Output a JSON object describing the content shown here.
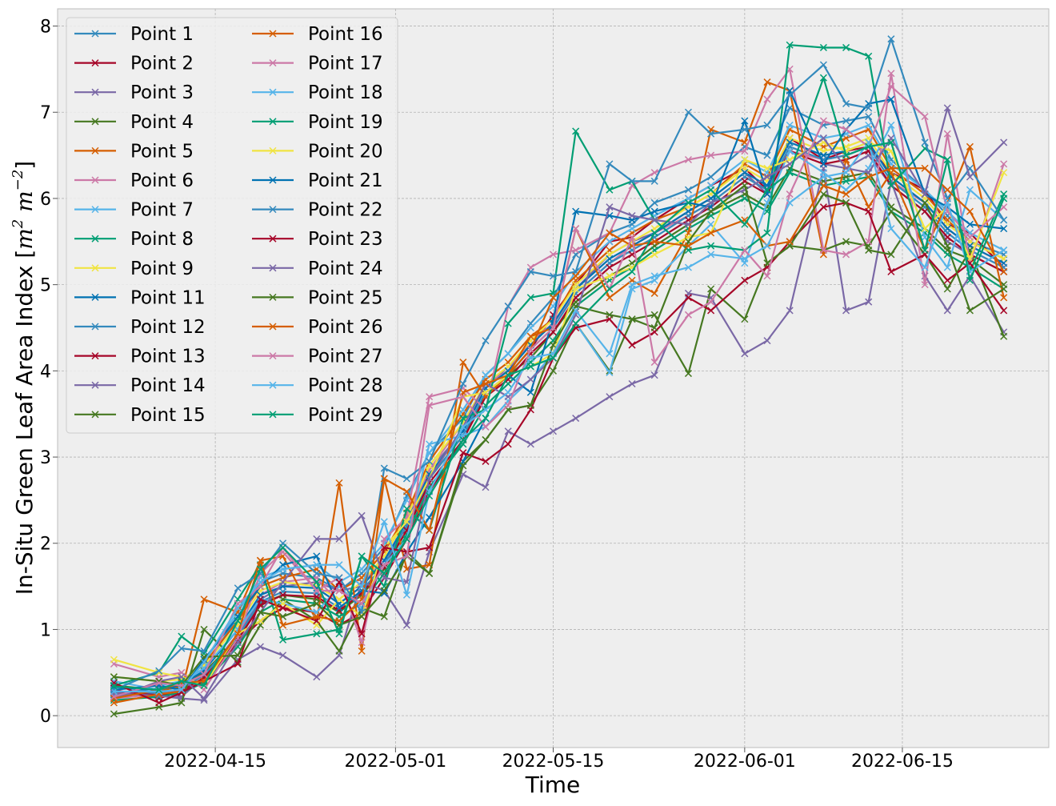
{
  "chart_data": {
    "type": "line",
    "xlabel": "Time",
    "ylabel_prefix": "In-Situ Green Leaf Area Index [",
    "ylabel_unit_base1": "m",
    "ylabel_unit_sup1": "2",
    "ylabel_unit_base2": "m",
    "ylabel_unit_sup2": "−2",
    "ylabel_suffix": "]",
    "xlim": [
      "2022-04-01",
      "2022-06-28"
    ],
    "ylim": [
      -0.37,
      8.2
    ],
    "x_ticks": [
      "2022-04-15",
      "2022-05-01",
      "2022-05-15",
      "2022-06-01",
      "2022-06-15"
    ],
    "y_ticks": [
      0,
      1,
      2,
      3,
      4,
      5,
      6,
      7,
      8
    ],
    "grid": true,
    "legend_position": "upper-left",
    "legend_columns": 2,
    "marker": "x",
    "palette": [
      "#348ABD",
      "#A60628",
      "#7A68A6",
      "#467821",
      "#D55E00",
      "#CC79A7",
      "#56B4E9",
      "#009E73",
      "#F0E442",
      "#0072B2"
    ],
    "dates": [
      "2022-04-06",
      "2022-04-10",
      "2022-04-12",
      "2022-04-14",
      "2022-04-17",
      "2022-04-19",
      "2022-04-21",
      "2022-04-24",
      "2022-04-26",
      "2022-04-28",
      "2022-04-30",
      "2022-05-02",
      "2022-05-04",
      "2022-05-07",
      "2022-05-09",
      "2022-05-11",
      "2022-05-13",
      "2022-05-15",
      "2022-05-17",
      "2022-05-20",
      "2022-05-22",
      "2022-05-24",
      "2022-05-27",
      "2022-05-29",
      "2022-06-01",
      "2022-06-03",
      "2022-06-05",
      "2022-06-08",
      "2022-06-10",
      "2022-06-12",
      "2022-06-14",
      "2022-06-17",
      "2022-06-19",
      "2022-06-21",
      "2022-06-24"
    ],
    "series": [
      {
        "name": "Point 1",
        "values": [
          0.25,
          0.32,
          0.38,
          0.55,
          1.15,
          1.55,
          1.65,
          1.6,
          1.45,
          1.65,
          1.95,
          2.55,
          3.05,
          3.45,
          3.95,
          4.2,
          4.55,
          4.85,
          5.35,
          5.6,
          5.7,
          5.95,
          6.1,
          6.25,
          6.6,
          6.5,
          7.05,
          6.85,
          6.9,
          6.95,
          6.45,
          6.1,
          5.8,
          5.5,
          5.35
        ]
      },
      {
        "name": "Point 2",
        "values": [
          0.3,
          0.2,
          0.28,
          0.4,
          0.85,
          1.1,
          1.25,
          1.2,
          1.05,
          1.2,
          1.6,
          2.05,
          2.6,
          3.2,
          3.75,
          3.95,
          4.25,
          4.65,
          5.0,
          5.5,
          5.55,
          5.75,
          6.0,
          6.15,
          6.35,
          6.1,
          6.7,
          6.45,
          6.55,
          6.6,
          6.3,
          6.1,
          5.7,
          5.6,
          5.2
        ]
      },
      {
        "name": "Point 3",
        "values": [
          0.28,
          0.26,
          0.22,
          0.45,
          0.95,
          1.35,
          1.5,
          1.55,
          1.45,
          1.5,
          1.8,
          2.2,
          2.85,
          3.3,
          3.8,
          4.05,
          4.3,
          4.55,
          4.95,
          5.35,
          5.5,
          5.6,
          5.85,
          6.0,
          6.3,
          6.05,
          6.55,
          6.4,
          6.35,
          6.5,
          6.15,
          5.85,
          5.5,
          5.35,
          5.15
        ]
      },
      {
        "name": "Point 4",
        "values": [
          0.35,
          0.3,
          0.33,
          0.5,
          0.9,
          1.3,
          1.4,
          1.35,
          1.2,
          1.4,
          1.7,
          2.15,
          2.75,
          3.25,
          3.7,
          3.95,
          4.15,
          4.45,
          4.8,
          5.1,
          5.25,
          5.45,
          5.7,
          5.85,
          6.05,
          5.9,
          6.35,
          6.2,
          6.25,
          6.3,
          5.9,
          5.65,
          5.4,
          5.3,
          5.0
        ]
      },
      {
        "name": "Point 5",
        "values": [
          0.22,
          0.28,
          0.35,
          0.6,
          1.1,
          1.5,
          1.6,
          1.7,
          1.45,
          1.6,
          1.9,
          2.35,
          2.95,
          3.5,
          3.9,
          4.1,
          4.4,
          4.6,
          5.05,
          5.4,
          5.6,
          5.75,
          5.9,
          6.05,
          6.4,
          6.25,
          6.8,
          6.6,
          6.7,
          6.8,
          6.35,
          6.05,
          5.75,
          5.5,
          5.3
        ]
      },
      {
        "name": "Point 6",
        "values": [
          0.2,
          0.25,
          0.3,
          0.42,
          0.95,
          1.4,
          1.55,
          1.6,
          1.3,
          1.5,
          1.85,
          2.3,
          2.85,
          3.4,
          3.85,
          4.0,
          4.35,
          4.55,
          4.9,
          5.25,
          5.45,
          5.6,
          5.8,
          5.95,
          6.25,
          6.1,
          6.55,
          6.45,
          6.5,
          6.6,
          6.2,
          5.95,
          5.65,
          5.45,
          5.25
        ]
      },
      {
        "name": "Point 7",
        "values": [
          0.3,
          0.35,
          0.4,
          0.62,
          1.2,
          1.6,
          1.7,
          1.75,
          1.55,
          1.7,
          2.0,
          2.5,
          3.05,
          3.55,
          3.95,
          4.2,
          4.5,
          4.75,
          5.15,
          5.5,
          5.65,
          5.8,
          6.0,
          6.15,
          6.45,
          6.3,
          6.85,
          6.7,
          6.75,
          6.85,
          6.4,
          6.1,
          5.85,
          5.6,
          5.4
        ]
      },
      {
        "name": "Point 8",
        "values": [
          0.18,
          0.22,
          0.27,
          0.38,
          0.8,
          1.2,
          1.35,
          1.3,
          1.15,
          1.3,
          1.65,
          2.1,
          2.65,
          3.15,
          3.6,
          3.85,
          4.1,
          4.35,
          4.75,
          5.05,
          5.2,
          5.4,
          5.65,
          5.8,
          6.0,
          5.85,
          6.3,
          6.15,
          6.2,
          6.25,
          5.85,
          5.6,
          5.35,
          5.2,
          4.95
        ]
      },
      {
        "name": "Point 9",
        "values": [
          0.45,
          0.4,
          0.42,
          0.58,
          1.05,
          1.45,
          1.55,
          1.5,
          1.35,
          1.55,
          1.85,
          2.3,
          2.9,
          3.4,
          3.85,
          4.05,
          4.35,
          4.6,
          5.0,
          5.35,
          5.5,
          5.65,
          5.9,
          6.05,
          6.35,
          6.2,
          6.7,
          6.55,
          6.6,
          6.7,
          6.3,
          6.0,
          5.7,
          5.5,
          5.3
        ]
      },
      {
        "name": "Point 11",
        "values": [
          0.32,
          0.3,
          0.36,
          0.52,
          1.0,
          1.4,
          1.5,
          1.48,
          1.3,
          1.5,
          1.8,
          2.25,
          2.8,
          3.3,
          3.8,
          4.0,
          4.3,
          4.55,
          4.95,
          5.3,
          5.45,
          5.6,
          5.85,
          6.0,
          6.3,
          6.15,
          6.65,
          6.5,
          6.55,
          6.65,
          6.25,
          5.95,
          5.65,
          5.45,
          5.25
        ]
      },
      {
        "name": "Point 12",
        "values": [
          0.24,
          0.27,
          0.31,
          0.47,
          0.92,
          1.32,
          1.44,
          1.42,
          1.25,
          1.45,
          1.75,
          2.2,
          2.75,
          3.25,
          3.75,
          3.95,
          4.25,
          4.5,
          4.9,
          5.25,
          5.4,
          5.55,
          5.8,
          5.95,
          6.25,
          6.1,
          6.6,
          6.45,
          6.5,
          6.6,
          6.2,
          5.9,
          5.6,
          5.4,
          5.2
        ]
      },
      {
        "name": "Point 13",
        "values": [
          0.27,
          0.24,
          0.29,
          0.44,
          0.88,
          1.28,
          1.4,
          1.38,
          1.22,
          1.42,
          1.72,
          2.15,
          2.7,
          3.2,
          3.7,
          3.9,
          4.2,
          4.45,
          4.85,
          5.2,
          5.35,
          5.5,
          5.75,
          5.9,
          6.2,
          6.05,
          6.55,
          6.4,
          6.45,
          6.55,
          6.15,
          5.85,
          5.55,
          5.35,
          5.15
        ]
      },
      {
        "name": "Point 14",
        "values": [
          0.26,
          0.23,
          0.2,
          0.18,
          0.65,
          0.8,
          0.7,
          0.45,
          0.7,
          1.55,
          1.45,
          1.05,
          1.9,
          2.8,
          2.65,
          3.3,
          3.15,
          3.3,
          3.45,
          3.7,
          3.85,
          3.95,
          4.9,
          4.85,
          4.2,
          4.35,
          4.7,
          6.35,
          4.7,
          4.8,
          6.2,
          5.1,
          4.7,
          5.1,
          4.45
        ]
      },
      {
        "name": "Point 15",
        "values": [
          0.02,
          0.1,
          0.15,
          1.0,
          0.62,
          1.05,
          1.35,
          1.1,
          0.75,
          1.25,
          1.15,
          1.9,
          1.65,
          2.95,
          3.2,
          3.55,
          3.6,
          4.0,
          4.55,
          4.0,
          4.6,
          4.65,
          3.97,
          4.95,
          4.6,
          5.25,
          5.45,
          5.4,
          5.5,
          5.45,
          5.85,
          5.35,
          4.95,
          5.4,
          4.4
        ]
      },
      {
        "name": "Point 16",
        "values": [
          0.15,
          0.25,
          0.28,
          1.35,
          1.2,
          1.8,
          1.85,
          1.1,
          2.7,
          0.75,
          2.75,
          1.7,
          1.75,
          4.1,
          3.7,
          3.95,
          4.4,
          4.5,
          5.65,
          4.85,
          5.05,
          4.9,
          5.6,
          6.8,
          6.65,
          7.35,
          7.25,
          5.35,
          6.45,
          5.9,
          6.3,
          5.4,
          5.95,
          6.6,
          4.85
        ]
      },
      {
        "name": "Point 17",
        "values": [
          0.6,
          0.45,
          0.5,
          0.3,
          0.9,
          1.65,
          1.9,
          1.45,
          1.6,
          0.85,
          2.05,
          2.3,
          3.7,
          3.8,
          3.55,
          4.75,
          5.2,
          5.35,
          5.4,
          5.6,
          6.15,
          6.3,
          6.45,
          6.5,
          6.55,
          7.15,
          7.5,
          5.4,
          5.35,
          5.5,
          7.45,
          5.0,
          6.75,
          5.25,
          6.4
        ]
      },
      {
        "name": "Point 18",
        "values": [
          0.4,
          0.3,
          0.38,
          0.55,
          1.0,
          1.35,
          1.3,
          1.2,
          1.5,
          1.25,
          1.75,
          2.05,
          3.15,
          3.25,
          3.35,
          3.65,
          3.9,
          4.2,
          4.55,
          3.98,
          4.95,
          5.05,
          5.45,
          5.7,
          5.25,
          5.95,
          6.55,
          6.3,
          6.1,
          6.35,
          6.85,
          5.55,
          5.2,
          6.1,
          5.75
        ]
      },
      {
        "name": "Point 19",
        "values": [
          0.35,
          0.5,
          0.92,
          0.72,
          1.35,
          1.75,
          0.88,
          0.95,
          1.0,
          1.85,
          1.5,
          2.4,
          2.15,
          3.45,
          3.55,
          4.55,
          4.85,
          4.9,
          6.78,
          6.1,
          6.2,
          5.75,
          5.4,
          5.45,
          5.4,
          5.6,
          7.78,
          7.75,
          7.75,
          7.65,
          6.15,
          6.58,
          6.45,
          5.15,
          6.05
        ]
      },
      {
        "name": "Point 20",
        "values": [
          0.65,
          0.5,
          0.45,
          0.35,
          0.95,
          1.1,
          1.3,
          1.05,
          1.35,
          1.15,
          1.95,
          2.25,
          2.75,
          3.7,
          3.75,
          3.95,
          4.05,
          4.2,
          4.95,
          5.1,
          5.2,
          5.35,
          5.55,
          5.6,
          6.45,
          6.35,
          6.45,
          6.65,
          6.55,
          6.65,
          6.55,
          5.65,
          5.9,
          5.3,
          6.3
        ]
      },
      {
        "name": "Point 21",
        "values": [
          0.3,
          0.35,
          0.3,
          0.65,
          1.15,
          1.5,
          1.75,
          1.85,
          1.25,
          1.45,
          1.42,
          1.9,
          2.3,
          2.95,
          3.45,
          3.95,
          3.75,
          4.6,
          5.85,
          5.8,
          5.75,
          5.85,
          5.95,
          5.9,
          6.9,
          6.05,
          7.25,
          6.4,
          6.8,
          7.1,
          7.15,
          6.05,
          5.9,
          5.7,
          5.65
        ]
      },
      {
        "name": "Point 22",
        "values": [
          0.3,
          0.52,
          0.78,
          0.75,
          1.48,
          1.65,
          2.0,
          1.65,
          1.6,
          1.2,
          2.87,
          2.75,
          2.95,
          3.85,
          4.35,
          4.75,
          5.15,
          5.1,
          5.15,
          6.4,
          6.2,
          6.2,
          7.0,
          6.75,
          6.8,
          6.85,
          7.2,
          7.55,
          7.1,
          7.05,
          7.85,
          6.65,
          6.0,
          6.35,
          5.75
        ]
      },
      {
        "name": "Point 23",
        "values": [
          0.38,
          0.15,
          0.27,
          0.4,
          0.6,
          1.35,
          1.25,
          1.1,
          1.55,
          0.95,
          1.95,
          1.9,
          1.95,
          3.05,
          2.95,
          3.15,
          3.55,
          4.15,
          4.5,
          4.6,
          4.3,
          4.45,
          4.85,
          4.7,
          5.05,
          5.2,
          5.5,
          5.9,
          5.95,
          5.85,
          5.15,
          5.35,
          5.05,
          5.25,
          4.7
        ]
      },
      {
        "name": "Point 24",
        "values": [
          0.2,
          0.4,
          0.45,
          0.2,
          0.85,
          1.2,
          1.55,
          2.05,
          2.05,
          2.32,
          1.6,
          1.55,
          2.75,
          3.35,
          3.85,
          3.7,
          3.9,
          4.15,
          4.65,
          5.9,
          5.8,
          5.75,
          5.7,
          5.95,
          6.1,
          6.25,
          6.4,
          6.7,
          6.35,
          6.3,
          6.7,
          6.05,
          7.05,
          6.25,
          6.65
        ]
      },
      {
        "name": "Point 25",
        "values": [
          0.45,
          0.4,
          0.35,
          0.68,
          0.7,
          1.2,
          1.15,
          1.3,
          1.05,
          1.15,
          1.45,
          1.85,
          1.65,
          2.9,
          3.2,
          3.55,
          3.6,
          4.3,
          4.75,
          4.65,
          4.6,
          4.5,
          5.5,
          5.85,
          6.15,
          5.25,
          5.45,
          6.05,
          5.95,
          5.4,
          5.35,
          5.95,
          5.45,
          4.7,
          4.95
        ]
      },
      {
        "name": "Point 26",
        "values": [
          0.2,
          0.3,
          0.38,
          0.4,
          0.95,
          1.8,
          1.05,
          1.15,
          1.1,
          1.35,
          2.75,
          2.6,
          2.15,
          3.75,
          3.85,
          3.95,
          4.25,
          4.85,
          5.1,
          5.6,
          5.45,
          5.5,
          5.45,
          5.6,
          5.75,
          5.45,
          5.5,
          6.15,
          6.05,
          6.25,
          6.35,
          6.35,
          6.1,
          5.85,
          5.15
        ]
      },
      {
        "name": "Point 27",
        "values": [
          0.22,
          0.38,
          0.35,
          0.48,
          1.3,
          1.5,
          1.95,
          1.45,
          1.45,
          1.3,
          1.75,
          1.85,
          3.6,
          3.7,
          3.35,
          3.6,
          4.25,
          4.5,
          5.65,
          4.95,
          5.55,
          4.1,
          4.65,
          4.8,
          5.4,
          5.1,
          6.05,
          6.9,
          6.8,
          6.6,
          7.3,
          6.95,
          5.85,
          5.55,
          5.9
        ]
      },
      {
        "name": "Point 28",
        "values": [
          0.28,
          0.28,
          0.3,
          0.62,
          1.25,
          1.55,
          1.7,
          1.75,
          1.75,
          1.5,
          2.25,
          1.4,
          2.6,
          3.35,
          3.55,
          3.75,
          4.15,
          4.2,
          4.7,
          4.2,
          5.0,
          5.1,
          5.2,
          5.35,
          5.3,
          5.45,
          5.95,
          6.25,
          6.3,
          6.65,
          5.65,
          5.2,
          5.95,
          5.15,
          5.4
        ]
      },
      {
        "name": "Point 29",
        "values": [
          0.34,
          0.3,
          0.4,
          0.35,
          1.1,
          1.7,
          1.95,
          1.55,
          0.95,
          1.85,
          1.65,
          2.05,
          2.55,
          3.2,
          3.45,
          3.95,
          4.05,
          4.15,
          4.55,
          4.95,
          5.15,
          5.6,
          5.95,
          6.1,
          5.7,
          6.1,
          6.3,
          7.4,
          6.5,
          6.6,
          6.65,
          5.4,
          6.45,
          5.05,
          6.0
        ]
      }
    ]
  }
}
